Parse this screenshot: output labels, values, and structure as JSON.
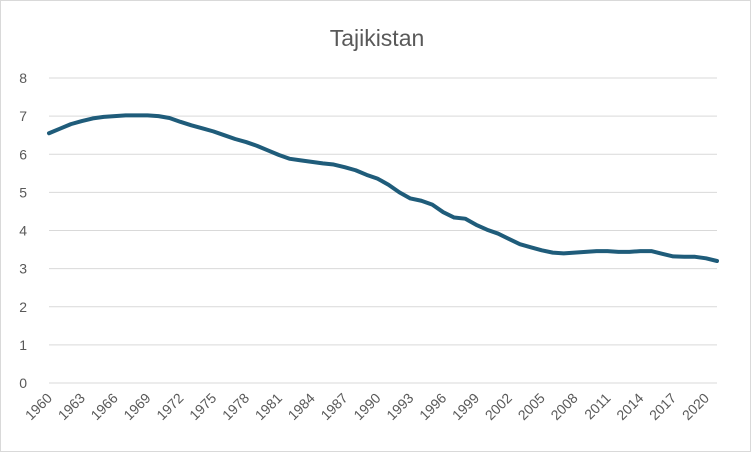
{
  "chart_data": {
    "type": "line",
    "title": "Tajikistan",
    "xlabel": "",
    "ylabel": "",
    "ylim": [
      0,
      8
    ],
    "yticks": [
      0,
      1,
      2,
      3,
      4,
      5,
      6,
      7,
      8
    ],
    "grid": true,
    "legend": "none",
    "x": [
      1960,
      1961,
      1962,
      1963,
      1964,
      1965,
      1966,
      1967,
      1968,
      1969,
      1970,
      1971,
      1972,
      1973,
      1974,
      1975,
      1976,
      1977,
      1978,
      1979,
      1980,
      1981,
      1982,
      1983,
      1984,
      1985,
      1986,
      1987,
      1988,
      1989,
      1990,
      1991,
      1992,
      1993,
      1994,
      1995,
      1996,
      1997,
      1998,
      1999,
      2000,
      2001,
      2002,
      2003,
      2004,
      2005,
      2006,
      2007,
      2008,
      2009,
      2010,
      2011,
      2012,
      2013,
      2014,
      2015,
      2016,
      2017,
      2018,
      2019,
      2020,
      2021
    ],
    "xtick_labels": [
      "1960",
      "1963",
      "1966",
      "1969",
      "1972",
      "1975",
      "1978",
      "1981",
      "1984",
      "1987",
      "1990",
      "1993",
      "1996",
      "1999",
      "2002",
      "2005",
      "2008",
      "2011",
      "2014",
      "2017",
      "2020"
    ],
    "series": [
      {
        "color": "#1f5c7a",
        "values": [
          6.55,
          6.67,
          6.79,
          6.87,
          6.94,
          6.98,
          7.0,
          7.02,
          7.02,
          7.02,
          7.0,
          6.95,
          6.85,
          6.76,
          6.68,
          6.6,
          6.5,
          6.4,
          6.32,
          6.22,
          6.1,
          5.98,
          5.88,
          5.84,
          5.8,
          5.76,
          5.73,
          5.66,
          5.58,
          5.46,
          5.36,
          5.2,
          5.0,
          4.84,
          4.78,
          4.68,
          4.48,
          4.34,
          4.31,
          4.15,
          4.02,
          3.92,
          3.78,
          3.64,
          3.56,
          3.48,
          3.42,
          3.4,
          3.42,
          3.44,
          3.46,
          3.46,
          3.44,
          3.44,
          3.46,
          3.46,
          3.39,
          3.32,
          3.31,
          3.31,
          3.27,
          3.2
        ]
      }
    ]
  }
}
